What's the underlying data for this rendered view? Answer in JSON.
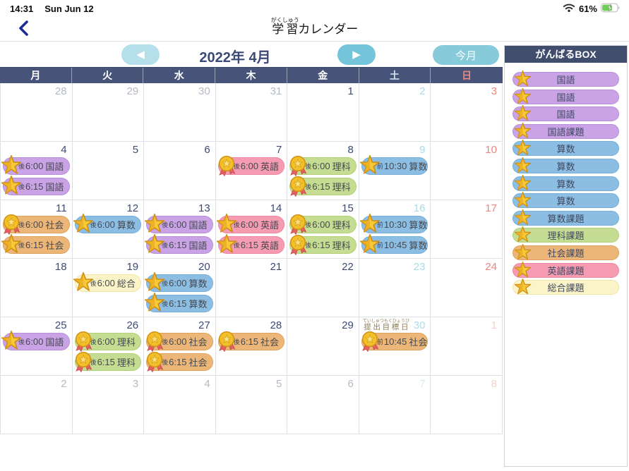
{
  "status_bar": {
    "time": "14:31",
    "date": "Sun Jun 12",
    "battery_percent": "61%"
  },
  "header": {
    "title_main": "学習",
    "title_furigana": "がくしゅう",
    "title_rest": "カレンダー"
  },
  "toolbar": {
    "month_label": "2022年 4月",
    "today_label": "今月"
  },
  "weekday_headers": [
    {
      "label": "月",
      "type": "weekday"
    },
    {
      "label": "火",
      "type": "weekday"
    },
    {
      "label": "水",
      "type": "weekday"
    },
    {
      "label": "木",
      "type": "weekday"
    },
    {
      "label": "金",
      "type": "weekday"
    },
    {
      "label": "土",
      "type": "saturday"
    },
    {
      "label": "日",
      "type": "sunday"
    }
  ],
  "header_colors": {
    "weekday": "#ffffff",
    "saturday": "#cfe6f0",
    "sunday": "#ef8a80"
  },
  "day_colors": {
    "weekday": "#3c4a74",
    "saturday": "#aadbe8",
    "sunday": "#f0837b",
    "muted_weekday": "#b3bac6",
    "muted_saturday": "#d9ecf3",
    "muted_sunday": "#f4d2cc"
  },
  "colors": {
    "purple": {
      "bg": "#caa3e6",
      "border": "#b78fd9"
    },
    "blue": {
      "bg": "#8cbee4",
      "border": "#74aeda"
    },
    "green": {
      "bg": "#c5dd92",
      "border": "#b2d077"
    },
    "orange": {
      "bg": "#ecb678",
      "border": "#dfa25b"
    },
    "pink": {
      "bg": "#f59cb2",
      "border": "#ee86a1"
    },
    "yellow": {
      "bg": "#fbf4c8",
      "border": "#efe5a6"
    }
  },
  "calendar": {
    "weeks": [
      [
        {
          "day": 28,
          "type": "weekday",
          "muted": true,
          "events": []
        },
        {
          "day": 29,
          "type": "weekday",
          "muted": true,
          "events": []
        },
        {
          "day": 30,
          "type": "weekday",
          "muted": true,
          "events": []
        },
        {
          "day": 31,
          "type": "weekday",
          "muted": true,
          "events": []
        },
        {
          "day": 1,
          "type": "weekday",
          "muted": false,
          "events": []
        },
        {
          "day": 2,
          "type": "saturday",
          "muted": false,
          "events": []
        },
        {
          "day": 3,
          "type": "sunday",
          "muted": false,
          "events": []
        }
      ],
      [
        {
          "day": 4,
          "type": "weekday",
          "muted": false,
          "events": [
            {
              "icon": "star",
              "period": "後",
              "time": "6:00",
              "subject": "国語",
              "color": "purple"
            },
            {
              "icon": "star",
              "period": "後",
              "time": "6:15",
              "subject": "国語",
              "color": "purple"
            }
          ]
        },
        {
          "day": 5,
          "type": "weekday",
          "muted": false,
          "events": []
        },
        {
          "day": 6,
          "type": "weekday",
          "muted": false,
          "events": []
        },
        {
          "day": 7,
          "type": "weekday",
          "muted": false,
          "events": [
            {
              "icon": "medal",
              "period": "後",
              "time": "6:00",
              "subject": "英語",
              "color": "pink"
            }
          ]
        },
        {
          "day": 8,
          "type": "weekday",
          "muted": false,
          "events": [
            {
              "icon": "medal",
              "period": "後",
              "time": "6:00",
              "subject": "理科",
              "color": "green"
            },
            {
              "icon": "medal",
              "period": "後",
              "time": "6:15",
              "subject": "理科",
              "color": "green"
            }
          ]
        },
        {
          "day": 9,
          "type": "saturday",
          "muted": false,
          "events": [
            {
              "icon": "star",
              "period": "前",
              "time": "10:30",
              "subject": "算数",
              "color": "blue"
            }
          ]
        },
        {
          "day": 10,
          "type": "sunday",
          "muted": false,
          "events": []
        }
      ],
      [
        {
          "day": 11,
          "type": "weekday",
          "muted": false,
          "events": [
            {
              "icon": "medal",
              "period": "後",
              "time": "6:00",
              "subject": "社会",
              "color": "orange"
            },
            {
              "icon": "star",
              "period": "後",
              "time": "6:15",
              "subject": "社会",
              "color": "orange"
            }
          ]
        },
        {
          "day": 12,
          "type": "weekday",
          "muted": false,
          "events": [
            {
              "icon": "star",
              "period": "後",
              "time": "6:00",
              "subject": "算数",
              "color": "blue"
            }
          ]
        },
        {
          "day": 13,
          "type": "weekday",
          "muted": false,
          "events": [
            {
              "icon": "star",
              "period": "後",
              "time": "6:00",
              "subject": "国語",
              "color": "purple"
            },
            {
              "icon": "star",
              "period": "後",
              "time": "6:15",
              "subject": "国語",
              "color": "purple"
            }
          ]
        },
        {
          "day": 14,
          "type": "weekday",
          "muted": false,
          "events": [
            {
              "icon": "star",
              "period": "後",
              "time": "6:00",
              "subject": "英語",
              "color": "pink"
            },
            {
              "icon": "star",
              "period": "後",
              "time": "6:15",
              "subject": "英語",
              "color": "pink"
            }
          ]
        },
        {
          "day": 15,
          "type": "weekday",
          "muted": false,
          "events": [
            {
              "icon": "medal",
              "period": "後",
              "time": "6:00",
              "subject": "理科",
              "color": "green"
            },
            {
              "icon": "medal",
              "period": "後",
              "time": "6:15",
              "subject": "理科",
              "color": "green"
            }
          ]
        },
        {
          "day": 16,
          "type": "saturday",
          "muted": false,
          "events": [
            {
              "icon": "star",
              "period": "前",
              "time": "10:30",
              "subject": "算数",
              "color": "blue"
            },
            {
              "icon": "star",
              "period": "前",
              "time": "10:45",
              "subject": "算数",
              "color": "blue"
            }
          ]
        },
        {
          "day": 17,
          "type": "sunday",
          "muted": false,
          "events": []
        }
      ],
      [
        {
          "day": 18,
          "type": "weekday",
          "muted": false,
          "events": []
        },
        {
          "day": 19,
          "type": "weekday",
          "muted": false,
          "events": [
            {
              "icon": "star",
              "period": "後",
              "time": "6:00",
              "subject": "総合",
              "color": "yellow"
            }
          ]
        },
        {
          "day": 20,
          "type": "weekday",
          "muted": false,
          "events": [
            {
              "icon": "star",
              "period": "後",
              "time": "6:00",
              "subject": "算数",
              "color": "blue"
            },
            {
              "icon": "star",
              "period": "後",
              "time": "6:15",
              "subject": "算数",
              "color": "blue"
            }
          ]
        },
        {
          "day": 21,
          "type": "weekday",
          "muted": false,
          "events": []
        },
        {
          "day": 22,
          "type": "weekday",
          "muted": false,
          "events": []
        },
        {
          "day": 23,
          "type": "saturday",
          "muted": false,
          "events": []
        },
        {
          "day": 24,
          "type": "sunday",
          "muted": false,
          "events": []
        }
      ],
      [
        {
          "day": 25,
          "type": "weekday",
          "muted": false,
          "events": [
            {
              "icon": "star",
              "period": "後",
              "time": "6:00",
              "subject": "国語",
              "color": "purple"
            }
          ]
        },
        {
          "day": 26,
          "type": "weekday",
          "muted": false,
          "events": [
            {
              "icon": "medal",
              "period": "後",
              "time": "6:00",
              "subject": "理科",
              "color": "green"
            },
            {
              "icon": "medal",
              "period": "後",
              "time": "6:15",
              "subject": "理科",
              "color": "green"
            }
          ]
        },
        {
          "day": 27,
          "type": "weekday",
          "muted": false,
          "events": [
            {
              "icon": "medal",
              "period": "後",
              "time": "6:00",
              "subject": "社会",
              "color": "orange"
            },
            {
              "icon": "medal",
              "period": "後",
              "time": "6:15",
              "subject": "社会",
              "color": "orange"
            }
          ]
        },
        {
          "day": 28,
          "type": "weekday",
          "muted": false,
          "events": [
            {
              "icon": "medal",
              "period": "後",
              "time": "6:15",
              "subject": "社会",
              "color": "orange"
            }
          ]
        },
        {
          "day": 29,
          "type": "weekday",
          "muted": false,
          "events": []
        },
        {
          "day": 30,
          "type": "saturday",
          "muted": false,
          "note": {
            "text": "提出目標日",
            "furigana": "ていしゅつもくひょうび"
          },
          "events": [
            {
              "icon": "medal",
              "period": "前",
              "time": "10:45",
              "subject": "社会",
              "color": "orange"
            }
          ]
        },
        {
          "day": 1,
          "type": "sunday",
          "muted": true,
          "events": []
        }
      ],
      [
        {
          "day": 2,
          "type": "weekday",
          "muted": true,
          "events": []
        },
        {
          "day": 3,
          "type": "weekday",
          "muted": true,
          "events": []
        },
        {
          "day": 4,
          "type": "weekday",
          "muted": true,
          "events": []
        },
        {
          "day": 5,
          "type": "weekday",
          "muted": true,
          "events": []
        },
        {
          "day": 6,
          "type": "weekday",
          "muted": true,
          "events": []
        },
        {
          "day": 7,
          "type": "saturday",
          "muted": true,
          "events": []
        },
        {
          "day": 8,
          "type": "sunday",
          "muted": true,
          "events": []
        }
      ]
    ]
  },
  "sidebar": {
    "title": "がんばるBOX",
    "items": [
      {
        "label": "国語",
        "color": "purple"
      },
      {
        "label": "国語",
        "color": "purple"
      },
      {
        "label": "国語",
        "color": "purple"
      },
      {
        "label": "国語課題",
        "color": "purple"
      },
      {
        "label": "算数",
        "color": "blue"
      },
      {
        "label": "算数",
        "color": "blue"
      },
      {
        "label": "算数",
        "color": "blue"
      },
      {
        "label": "算数",
        "color": "blue"
      },
      {
        "label": "算数課題",
        "color": "blue"
      },
      {
        "label": "理科課題",
        "color": "green"
      },
      {
        "label": "社会課題",
        "color": "orange"
      },
      {
        "label": "英語課題",
        "color": "pink"
      },
      {
        "label": "総合課題",
        "color": "yellow"
      }
    ]
  }
}
